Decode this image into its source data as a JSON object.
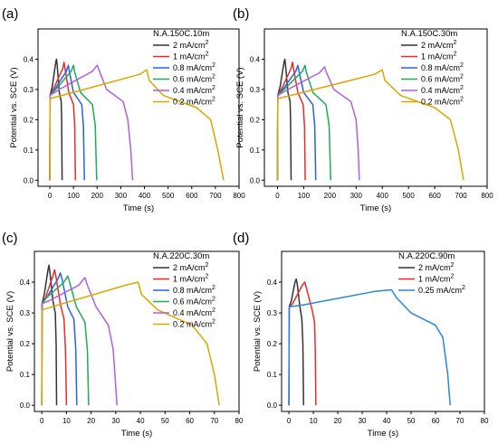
{
  "chart_data": [
    {
      "type": "line",
      "panel_label": "(a)",
      "title": "N.A.150C.10m",
      "xlabel": "Time (s)",
      "ylabel": "Potential vs. SCE (V)",
      "xlim": [
        -50,
        800
      ],
      "ylim": [
        -0.02,
        0.5
      ],
      "xticks": [
        0,
        100,
        200,
        300,
        400,
        500,
        600,
        700,
        800
      ],
      "yticks": [
        0.0,
        0.1,
        0.2,
        0.3,
        0.4
      ],
      "ytick_labels": [
        "0.0",
        "0.1",
        "0.2",
        "0.3",
        "0.4"
      ],
      "legend_position": "top-right",
      "series": [
        {
          "name": "2 mA/cm2",
          "color": "#333333",
          "x": [
            0,
            1,
            10,
            25,
            28,
            31,
            40,
            48,
            50,
            52
          ],
          "y": [
            0,
            0.28,
            0.31,
            0.39,
            0.4,
            0.38,
            0.29,
            0.26,
            0.2,
            0
          ]
        },
        {
          "name": "1 mA/cm2",
          "color": "#f02828",
          "x": [
            0,
            1,
            20,
            55,
            60,
            64,
            80,
            100,
            105,
            108
          ],
          "y": [
            0,
            0.28,
            0.31,
            0.37,
            0.39,
            0.37,
            0.29,
            0.25,
            0.18,
            0
          ]
        },
        {
          "name": "0.8 mA/cm2",
          "color": "#2563eb",
          "x": [
            0,
            1,
            20,
            70,
            78,
            82,
            100,
            135,
            142,
            146
          ],
          "y": [
            0,
            0.28,
            0.3,
            0.36,
            0.38,
            0.36,
            0.29,
            0.25,
            0.18,
            0
          ]
        },
        {
          "name": "0.6 mA/cm2",
          "color": "#22aa55",
          "x": [
            0,
            1,
            25,
            90,
            100,
            104,
            130,
            180,
            192,
            198
          ],
          "y": [
            0,
            0.28,
            0.3,
            0.36,
            0.38,
            0.36,
            0.29,
            0.25,
            0.18,
            0
          ]
        },
        {
          "name": "0.4 mA/cm2",
          "color": "#b05fe0",
          "x": [
            0,
            1,
            40,
            180,
            200,
            205,
            240,
            310,
            330,
            342,
            350
          ],
          "y": [
            0,
            0.28,
            0.3,
            0.36,
            0.38,
            0.37,
            0.3,
            0.26,
            0.2,
            0.1,
            0
          ]
        },
        {
          "name": "0.2 mA/cm2",
          "color": "#d9a800",
          "x": [
            0,
            1,
            50,
            380,
            410,
            420,
            480,
            620,
            680,
            710,
            735
          ],
          "y": [
            0,
            0.27,
            0.28,
            0.35,
            0.365,
            0.33,
            0.28,
            0.24,
            0.2,
            0.1,
            0
          ]
        }
      ]
    },
    {
      "type": "line",
      "panel_label": "(b)",
      "title": "N.A.150C.30m",
      "xlabel": "Time (s)",
      "ylabel": "Potential vs. SCE (V)",
      "xlim": [
        -50,
        800
      ],
      "ylim": [
        -0.02,
        0.5
      ],
      "xticks": [
        0,
        100,
        200,
        300,
        400,
        500,
        600,
        700,
        800
      ],
      "yticks": [
        0.0,
        0.1,
        0.2,
        0.3,
        0.4
      ],
      "ytick_labels": [
        "0.0",
        "0.1",
        "0.2",
        "0.3",
        "0.4"
      ],
      "legend_position": "top-right",
      "series": [
        {
          "name": "2 mA/cm2",
          "color": "#333333",
          "x": [
            0,
            1,
            10,
            25,
            28,
            31,
            40,
            48,
            50,
            52
          ],
          "y": [
            0,
            0.28,
            0.31,
            0.39,
            0.4,
            0.38,
            0.29,
            0.26,
            0.2,
            0
          ]
        },
        {
          "name": "1 mA/cm2",
          "color": "#f02828",
          "x": [
            0,
            1,
            20,
            52,
            57,
            61,
            78,
            98,
            103,
            106
          ],
          "y": [
            0,
            0.28,
            0.31,
            0.37,
            0.39,
            0.37,
            0.29,
            0.25,
            0.18,
            0
          ]
        },
        {
          "name": "0.8 mA/cm2",
          "color": "#2563eb",
          "x": [
            0,
            1,
            20,
            70,
            78,
            82,
            100,
            135,
            142,
            146
          ],
          "y": [
            0,
            0.28,
            0.3,
            0.36,
            0.38,
            0.36,
            0.29,
            0.25,
            0.18,
            0
          ]
        },
        {
          "name": "0.6 mA/cm2",
          "color": "#22aa55",
          "x": [
            0,
            1,
            25,
            95,
            105,
            109,
            135,
            185,
            197,
            203
          ],
          "y": [
            0,
            0.28,
            0.3,
            0.36,
            0.38,
            0.36,
            0.29,
            0.25,
            0.18,
            0
          ]
        },
        {
          "name": "0.4 mA/cm2",
          "color": "#b05fe0",
          "x": [
            0,
            1,
            40,
            160,
            180,
            185,
            215,
            280,
            300,
            308,
            312
          ],
          "y": [
            0,
            0.28,
            0.3,
            0.355,
            0.375,
            0.36,
            0.3,
            0.26,
            0.2,
            0.1,
            0
          ]
        },
        {
          "name": "0.2 mA/cm2",
          "color": "#d9a800",
          "x": [
            0,
            1,
            50,
            370,
            400,
            410,
            470,
            600,
            660,
            690,
            710
          ],
          "y": [
            0,
            0.27,
            0.28,
            0.35,
            0.365,
            0.33,
            0.28,
            0.24,
            0.2,
            0.1,
            0
          ]
        }
      ]
    },
    {
      "type": "line",
      "panel_label": "(c)",
      "title": "N.A.220C.30m",
      "xlabel": "Time (s)",
      "ylabel": "Potential vs. SCE (V)",
      "xlim": [
        -3,
        80
      ],
      "ylim": [
        -0.02,
        0.5
      ],
      "xticks": [
        0,
        10,
        20,
        30,
        40,
        50,
        60,
        70,
        80
      ],
      "yticks": [
        0.0,
        0.1,
        0.2,
        0.3,
        0.4
      ],
      "ytick_labels": [
        "0.0",
        "0.1",
        "0.2",
        "0.3",
        "0.4"
      ],
      "legend_position": "top-right",
      "series": [
        {
          "name": "2 mA/cm2",
          "color": "#333333",
          "x": [
            0,
            0.1,
            1,
            2.5,
            2.9,
            3.3,
            4.5,
            5.5,
            5.8,
            6.0
          ],
          "y": [
            0,
            0.33,
            0.36,
            0.44,
            0.455,
            0.43,
            0.34,
            0.3,
            0.2,
            0
          ]
        },
        {
          "name": "1 mA/cm2",
          "color": "#f02828",
          "x": [
            0,
            0.1,
            1.5,
            4.5,
            5.2,
            5.7,
            7.5,
            9.0,
            9.6,
            10.0
          ],
          "y": [
            0,
            0.33,
            0.35,
            0.42,
            0.44,
            0.42,
            0.33,
            0.28,
            0.18,
            0
          ]
        },
        {
          "name": "0.8 mA/cm2",
          "color": "#2563eb",
          "x": [
            0,
            0.1,
            2,
            6.5,
            7.5,
            8.2,
            10.5,
            13.0,
            13.8,
            14.2
          ],
          "y": [
            0,
            0.33,
            0.35,
            0.41,
            0.43,
            0.41,
            0.32,
            0.28,
            0.18,
            0
          ]
        },
        {
          "name": "0.6 mA/cm2",
          "color": "#22aa55",
          "x": [
            0,
            0.1,
            2,
            9,
            10.5,
            11.3,
            14,
            17.5,
            18.5,
            19
          ],
          "y": [
            0,
            0.33,
            0.35,
            0.4,
            0.42,
            0.4,
            0.32,
            0.27,
            0.18,
            0
          ]
        },
        {
          "name": "0.4 mA/cm2",
          "color": "#b05fe0",
          "x": [
            0,
            0.1,
            3,
            15,
            17.5,
            18.5,
            22,
            27,
            29,
            30.5
          ],
          "y": [
            0,
            0.33,
            0.34,
            0.39,
            0.415,
            0.39,
            0.32,
            0.26,
            0.18,
            0
          ]
        },
        {
          "name": "0.2 mA/cm2",
          "color": "#d9a800",
          "x": [
            0,
            0.1,
            4,
            34,
            39,
            40.5,
            47,
            61,
            67,
            70,
            72
          ],
          "y": [
            0,
            0.31,
            0.32,
            0.39,
            0.4,
            0.36,
            0.31,
            0.26,
            0.2,
            0.1,
            0
          ]
        }
      ]
    },
    {
      "type": "line",
      "panel_label": "(d)",
      "title": "N.A.220C.90m",
      "xlabel": "Time (s)",
      "ylabel": "Potential vs. SCE (V)",
      "xlim": [
        -3,
        80
      ],
      "ylim": [
        -0.02,
        0.5
      ],
      "xticks": [
        0,
        10,
        20,
        30,
        40,
        50,
        60,
        70,
        80
      ],
      "yticks": [
        0.0,
        0.1,
        0.2,
        0.3,
        0.4
      ],
      "ytick_labels": [
        "0.0",
        "0.1",
        "0.2",
        "0.3",
        "0.4"
      ],
      "legend_position": "top-right",
      "series": [
        {
          "name": "2 mA/cm2",
          "color": "#333333",
          "x": [
            0,
            0.1,
            1,
            2.5,
            3,
            3.5,
            4.5,
            5.3,
            5.7,
            6
          ],
          "y": [
            0,
            0.32,
            0.34,
            0.4,
            0.41,
            0.39,
            0.32,
            0.28,
            0.2,
            0
          ]
        },
        {
          "name": "1 mA/cm2",
          "color": "#f02828",
          "x": [
            0,
            0.1,
            1.5,
            5.5,
            6.5,
            7.2,
            9.5,
            10.5,
            10.8,
            11
          ],
          "y": [
            0,
            0.32,
            0.33,
            0.39,
            0.4,
            0.38,
            0.31,
            0.27,
            0.18,
            0
          ]
        },
        {
          "name": "0.25 mA/cm2",
          "color": "#2b86d9",
          "x": [
            0,
            0.1,
            5,
            35,
            42,
            44,
            50,
            60,
            63,
            65,
            66
          ],
          "y": [
            0,
            0.32,
            0.325,
            0.37,
            0.375,
            0.35,
            0.3,
            0.26,
            0.22,
            0.1,
            0
          ]
        }
      ]
    }
  ]
}
